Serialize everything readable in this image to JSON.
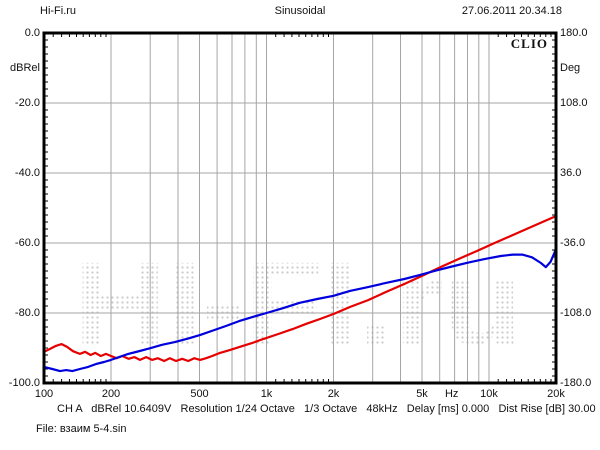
{
  "header": {
    "site": "Hi-Fi.ru",
    "title": "Sinusoidal",
    "datetime": "27.06.2011 20.34.18"
  },
  "plot": {
    "logo": "CLIO",
    "watermark": "HI-FI.ru"
  },
  "axis_left": {
    "label": "dBRel",
    "ticks": [
      "0.0",
      "-20.0",
      "-40.0",
      "-60.0",
      "-80.0",
      "-100.0"
    ]
  },
  "axis_right": {
    "label": "Deg",
    "ticks": [
      "180.0",
      "108.0",
      "36.0",
      "-36.0",
      "-108.0",
      "-180.0"
    ]
  },
  "axis_bottom": {
    "unit_label": "Hz",
    "unit_label_hz_position": 6800,
    "tick_labels": [
      [
        "100",
        100
      ],
      [
        "200",
        200
      ],
      [
        "500",
        500
      ],
      [
        "1k",
        1000
      ],
      [
        "2k",
        2000
      ],
      [
        "5k",
        5000
      ],
      [
        "10k",
        10000
      ],
      [
        "20k",
        20000
      ]
    ]
  },
  "footer": {
    "status_line": "CH A   dBRel 10.6409V   Resolution 1/24 Octave   1/3 Octave   48kHz   Delay [ms] 0.000   Dist Rise [dB] 30.00",
    "file_line": "File: взаим 5-4.sin"
  },
  "chart_data": {
    "type": "line",
    "title": "Sinusoidal",
    "x_scale": "log",
    "x_unit": "Hz",
    "xlim": [
      100,
      20000
    ],
    "y_left": {
      "label": "dBRel",
      "lim": [
        -100,
        0
      ],
      "gridlines": [
        -20,
        -40,
        -60,
        -80
      ]
    },
    "y_right": {
      "label": "Deg",
      "lim": [
        -180,
        180
      ],
      "tick_values": [
        180,
        108,
        36,
        -36,
        -108,
        -180
      ]
    },
    "x_gridlines": [
      200,
      300,
      400,
      500,
      600,
      700,
      800,
      900,
      1000,
      2000,
      3000,
      4000,
      5000,
      6000,
      7000,
      8000,
      9000,
      10000
    ],
    "grid": true,
    "legend": "none",
    "grid_color": "#a6a6a6",
    "watermark_color": "#cccccc",
    "series": [
      {
        "name": "distortion-red",
        "color": "#e60000",
        "points_hz_db": [
          [
            100,
            -91.1
          ],
          [
            106,
            -90.3
          ],
          [
            113,
            -89.4
          ],
          [
            120,
            -88.9
          ],
          [
            127,
            -89.7
          ],
          [
            135,
            -90.9
          ],
          [
            145,
            -91.7
          ],
          [
            153,
            -91.1
          ],
          [
            162,
            -92.0
          ],
          [
            170,
            -91.4
          ],
          [
            180,
            -92.3
          ],
          [
            190,
            -91.7
          ],
          [
            200,
            -92.3
          ],
          [
            212,
            -92.9
          ],
          [
            225,
            -92.3
          ],
          [
            240,
            -93.1
          ],
          [
            255,
            -92.6
          ],
          [
            270,
            -93.4
          ],
          [
            288,
            -92.6
          ],
          [
            306,
            -93.4
          ],
          [
            325,
            -92.9
          ],
          [
            347,
            -93.7
          ],
          [
            368,
            -92.9
          ],
          [
            392,
            -93.7
          ],
          [
            418,
            -93.1
          ],
          [
            445,
            -93.7
          ],
          [
            473,
            -92.9
          ],
          [
            503,
            -93.4
          ],
          [
            535,
            -92.9
          ],
          [
            570,
            -92.3
          ],
          [
            618,
            -91.4
          ],
          [
            684,
            -90.6
          ],
          [
            757,
            -89.7
          ],
          [
            860,
            -88.6
          ],
          [
            970,
            -87.4
          ],
          [
            1130,
            -86.0
          ],
          [
            1310,
            -84.6
          ],
          [
            1510,
            -83.1
          ],
          [
            1740,
            -81.7
          ],
          [
            2000,
            -80.3
          ],
          [
            2370,
            -78.3
          ],
          [
            2860,
            -76.3
          ],
          [
            3440,
            -74.0
          ],
          [
            4160,
            -71.7
          ],
          [
            5000,
            -69.4
          ],
          [
            6000,
            -67.0
          ],
          [
            7280,
            -64.6
          ],
          [
            8790,
            -62.3
          ],
          [
            10600,
            -60.0
          ],
          [
            12800,
            -57.7
          ],
          [
            15100,
            -55.7
          ],
          [
            17400,
            -54.0
          ],
          [
            18900,
            -53.0
          ],
          [
            20000,
            -52.3
          ]
        ]
      },
      {
        "name": "distortion-blue",
        "color": "#0000dd",
        "points_hz_db": [
          [
            100,
            -95.4
          ],
          [
            109,
            -96.0
          ],
          [
            118,
            -96.6
          ],
          [
            126,
            -96.3
          ],
          [
            134,
            -96.6
          ],
          [
            145,
            -96.0
          ],
          [
            158,
            -95.4
          ],
          [
            171,
            -94.6
          ],
          [
            186,
            -94.0
          ],
          [
            200,
            -93.4
          ],
          [
            217,
            -92.6
          ],
          [
            239,
            -91.7
          ],
          [
            264,
            -91.0
          ],
          [
            299,
            -90.1
          ],
          [
            339,
            -89.1
          ],
          [
            387,
            -88.3
          ],
          [
            444,
            -87.3
          ],
          [
            502,
            -86.3
          ],
          [
            575,
            -85.0
          ],
          [
            657,
            -83.7
          ],
          [
            753,
            -82.3
          ],
          [
            871,
            -81.1
          ],
          [
            1000,
            -80.0
          ],
          [
            1190,
            -78.6
          ],
          [
            1410,
            -77.1
          ],
          [
            1690,
            -76.0
          ],
          [
            2000,
            -75.1
          ],
          [
            2370,
            -73.7
          ],
          [
            2860,
            -72.6
          ],
          [
            3440,
            -71.4
          ],
          [
            4160,
            -70.3
          ],
          [
            4900,
            -69.1
          ],
          [
            5770,
            -67.9
          ],
          [
            6820,
            -66.7
          ],
          [
            8070,
            -65.6
          ],
          [
            9540,
            -64.6
          ],
          [
            11300,
            -63.7
          ],
          [
            12800,
            -63.3
          ],
          [
            14100,
            -63.3
          ],
          [
            15600,
            -64.1
          ],
          [
            17100,
            -65.7
          ],
          [
            18000,
            -66.9
          ],
          [
            18900,
            -65.4
          ],
          [
            19600,
            -63.1
          ],
          [
            20000,
            -61.7
          ]
        ]
      }
    ]
  }
}
